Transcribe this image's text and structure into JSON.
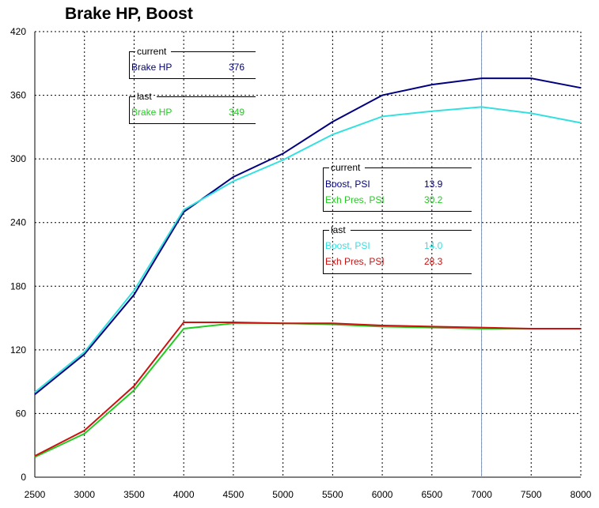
{
  "title": "Brake HP, Boost",
  "chart_data": {
    "type": "line",
    "title": "Brake HP, Boost",
    "xlabel": "",
    "ylabel": "",
    "xlim": [
      2500,
      8000
    ],
    "ylim": [
      0,
      420
    ],
    "x_ticks": [
      2500,
      3000,
      3500,
      4000,
      4500,
      5000,
      5500,
      6000,
      6500,
      7000,
      7500,
      8000
    ],
    "y_ticks": [
      0,
      60,
      120,
      180,
      240,
      300,
      360,
      420
    ],
    "grid": true,
    "cursor_x": 7000,
    "x": [
      2500,
      3000,
      3500,
      4000,
      4500,
      5000,
      5500,
      6000,
      6500,
      7000,
      7500,
      8000
    ],
    "series": [
      {
        "color": "#000080",
        "values": [
          78,
          116,
          172,
          250,
          283,
          305,
          335,
          360,
          370,
          376,
          376,
          367
        ]
      },
      {
        "color": "#33e0e0",
        "values": [
          80,
          118,
          176,
          252,
          279,
          299,
          323,
          340,
          345,
          349,
          343,
          334
        ]
      },
      {
        "color": "#22cc22",
        "values": [
          19,
          41,
          82,
          140,
          145,
          145,
          144,
          142,
          141,
          140,
          140,
          140
        ]
      },
      {
        "color": "#cc1111",
        "values": [
          20,
          44,
          86,
          146,
          146,
          145,
          145,
          143,
          142,
          141,
          140,
          140
        ]
      }
    ]
  },
  "legends": {
    "hp_current": {
      "header": "current",
      "rows": [
        {
          "label": "Brake HP",
          "value": "376",
          "color": "#000080"
        }
      ]
    },
    "hp_last": {
      "header": "last",
      "rows": [
        {
          "label": "Brake HP",
          "value": "349",
          "color": "#22cc22"
        }
      ]
    },
    "boost_current": {
      "header": "current",
      "rows": [
        {
          "label": "Boost, PSI",
          "value": "13.9",
          "color": "#000080"
        },
        {
          "label": "Exh Pres, PSI",
          "value": "30.2",
          "color": "#22cc22"
        }
      ]
    },
    "boost_last": {
      "header": "last",
      "rows": [
        {
          "label": "Boost, PSI",
          "value": "14.0",
          "color": "#33e0e0"
        },
        {
          "label": "Exh Pres, PSI",
          "value": "28.3",
          "color": "#cc1111"
        }
      ]
    }
  }
}
